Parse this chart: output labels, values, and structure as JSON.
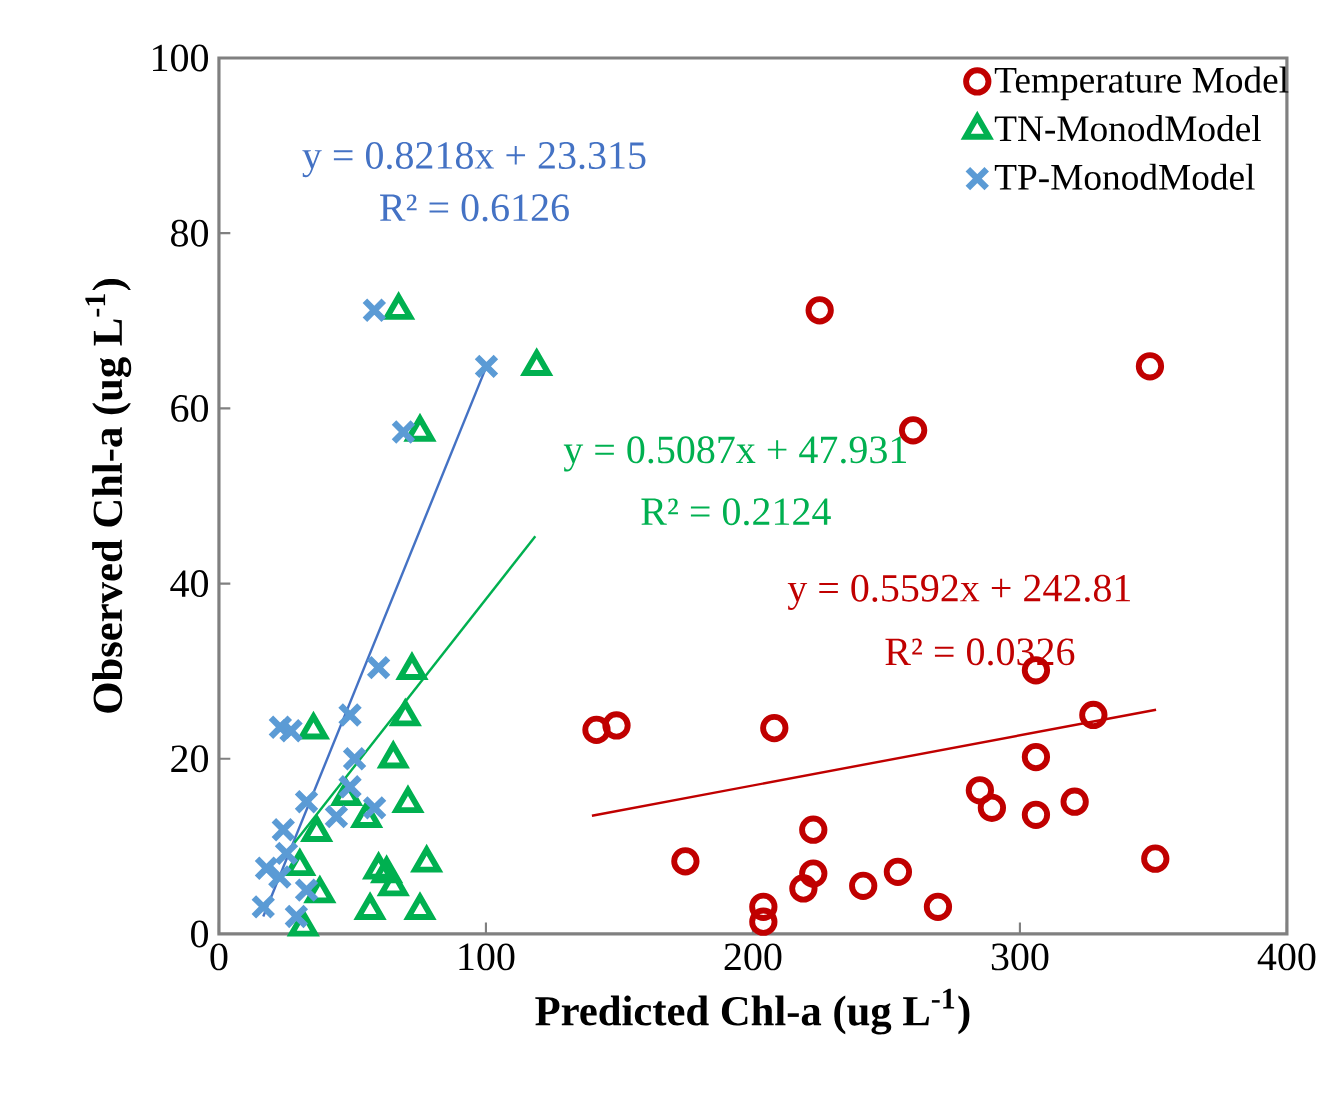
{
  "chart_data": {
    "type": "scatter",
    "xlabel": "Predicted Chl-a (ug L$^{-1}$)",
    "ylabel": "Observed Chl-a (ug L$^{-1}$)",
    "xlim": [
      0,
      400
    ],
    "ylim": [
      0,
      100
    ],
    "xticks": [
      0,
      100,
      200,
      300,
      400
    ],
    "yticks": [
      0,
      20,
      40,
      60,
      80,
      100
    ],
    "grid": false,
    "legend": "top right",
    "series": [
      {
        "name": "Temperature Model",
        "color": "#c00000",
        "marker": "circle",
        "x": [
          225,
          348.7,
          260,
          306,
          141.4,
          148.9,
          208,
          327.5,
          306,
          285,
          289.5,
          306,
          320.5,
          222.6,
          174.7,
          350.7,
          222.6,
          218.9,
          241.3,
          254.3,
          269.3,
          203.9,
          203.9
        ],
        "values": [
          71.2,
          64.8,
          57.5,
          30.1,
          23.3,
          23.8,
          23.5,
          25.0,
          20.2,
          16.4,
          14.4,
          13.6,
          15.1,
          11.9,
          8.3,
          8.6,
          6.9,
          5.2,
          5.5,
          7.1,
          3.1,
          3.1,
          1.4
        ]
      },
      {
        "name": "TN-MonodModel",
        "color": "#00b050",
        "marker": "triangle",
        "x": [
          67.3,
          119,
          75.3,
          72.3,
          35.4,
          69.8,
          65.3,
          70.8,
          47.8,
          55.3,
          36.6,
          77.8,
          62.8,
          65.3,
          56.6,
          75.3,
          37.8,
          30.3,
          31.6,
          59.8
        ],
        "values": [
          71.2,
          64.8,
          57.3,
          30.1,
          23.3,
          24.8,
          20.0,
          14.9,
          15.7,
          13.2,
          11.6,
          8.1,
          6.9,
          5.4,
          2.7,
          2.7,
          4.6,
          7.7,
          0.8,
          7.3
        ]
      },
      {
        "name": "TP-MonodModel",
        "color": "#5b9bd5",
        "marker": "cross",
        "x": [
          58.2,
          100.2,
          69.1,
          59.8,
          49.1,
          23,
          27,
          50.8,
          49.1,
          32.8,
          44,
          58.3,
          24.1,
          17.8,
          25.3,
          32.8,
          16.6,
          29,
          22.8
        ],
        "values": [
          71.2,
          64.8,
          57.3,
          30.4,
          25.0,
          23.6,
          23.2,
          20.0,
          16.8,
          15.1,
          13.4,
          14.4,
          11.9,
          7.5,
          9.2,
          5.0,
          3.1,
          2.0,
          6.5
        ]
      },
      {
        "type": "line",
        "color": "#4472c4",
        "x": [
          16.6,
          100.2
        ],
        "values": [
          2.0,
          64.8
        ]
      },
      {
        "type": "line",
        "color": "#00b050",
        "x": [
          24.1,
          118.5
        ],
        "values": [
          8.8,
          45.4
        ]
      },
      {
        "type": "line",
        "color": "#c00000",
        "x": [
          139.7,
          351
        ],
        "values": [
          13.5,
          25.6
        ]
      }
    ],
    "annotations": [
      "y = 0.8218x + 23.315",
      "R² = 0.6126",
      "y = 0.5087x + 47.931",
      "R² = 0.2124",
      "y = 0.5592x + 242.81",
      "R² = 0.0326"
    ]
  }
}
